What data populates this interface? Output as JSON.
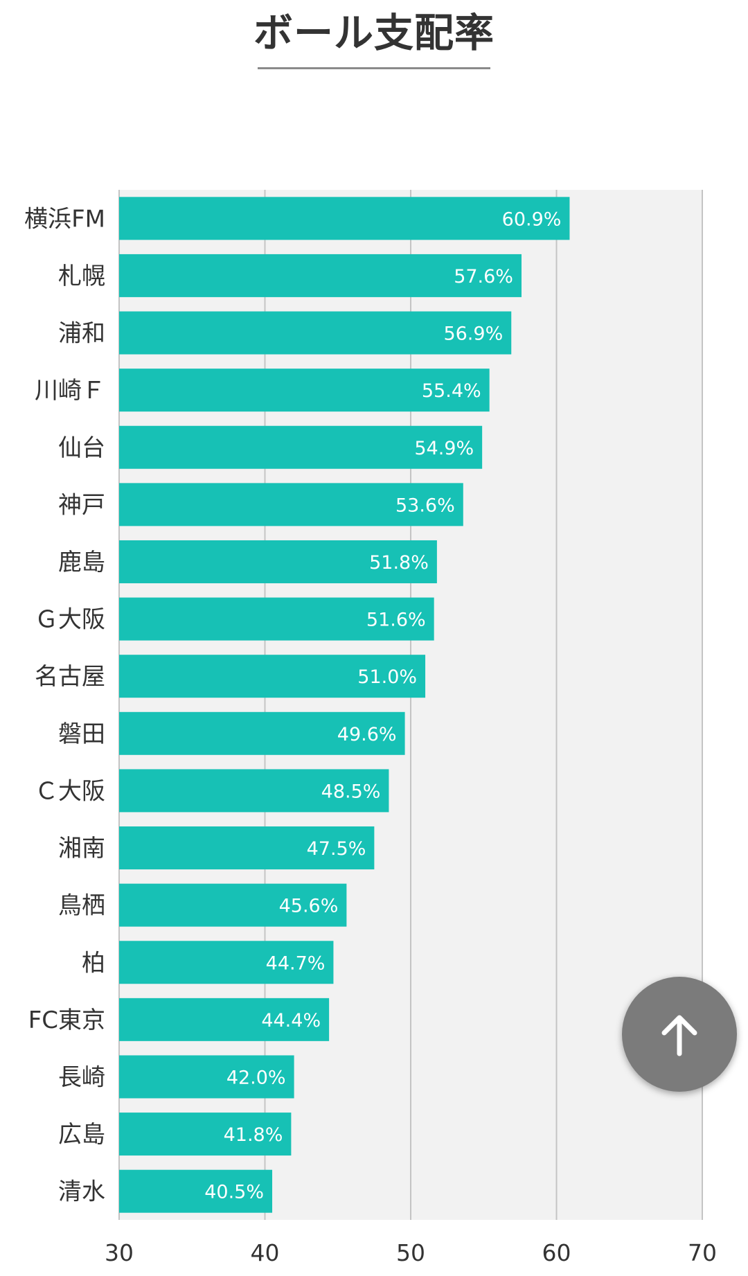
{
  "header": {
    "title": "ボール支配率"
  },
  "chart_data": {
    "type": "bar",
    "orientation": "horizontal",
    "title": "ボール支配率",
    "categories": [
      "横浜FM",
      "札幌",
      "浦和",
      "川崎Ｆ",
      "仙台",
      "神戸",
      "鹿島",
      "Ｇ大阪",
      "名古屋",
      "磐田",
      "Ｃ大阪",
      "湘南",
      "鳥栖",
      "柏",
      "FC東京",
      "長崎",
      "広島",
      "清水"
    ],
    "values": [
      60.9,
      57.6,
      56.9,
      55.4,
      54.9,
      53.6,
      51.8,
      51.6,
      51.0,
      49.6,
      48.5,
      47.5,
      45.6,
      44.7,
      44.4,
      42.0,
      41.8,
      40.5
    ],
    "data_labels": [
      "60.9%",
      "57.6%",
      "56.9%",
      "55.4%",
      "54.9%",
      "53.6%",
      "51.8%",
      "51.6%",
      "51.0%",
      "49.6%",
      "48.5%",
      "47.5%",
      "45.6%",
      "44.7%",
      "44.4%",
      "42.0%",
      "41.8%",
      "40.5%"
    ],
    "xlim": [
      30,
      70
    ],
    "xticks": [
      "30",
      "40",
      "50",
      "60",
      "70"
    ],
    "xlabel": "",
    "ylabel": "",
    "grid": true,
    "bar_color": "#17c1b5",
    "plot_background": "#f2f2f2"
  },
  "controls": {
    "scroll_top_icon": "arrow-up-icon"
  }
}
